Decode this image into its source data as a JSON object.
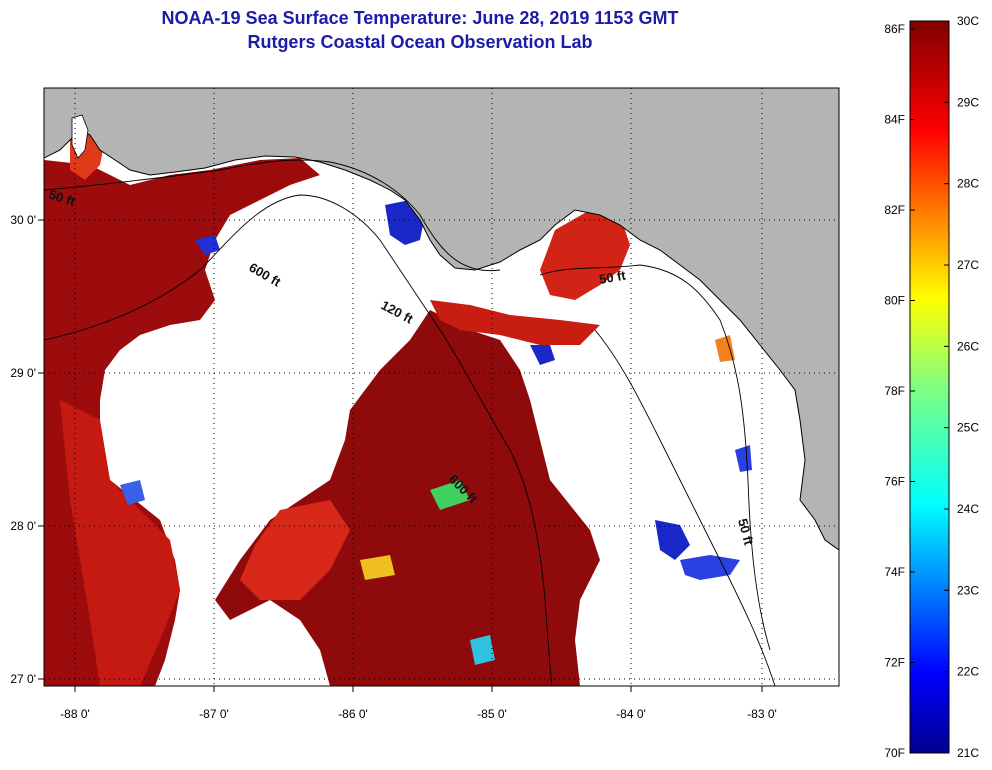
{
  "title": "NOAA-19 Sea Surface Temperature:  June 28, 2019 1153 GMT",
  "subtitle": "Rutgers Coastal Ocean Observation Lab",
  "map": {
    "lon_range": [
      -88.3,
      -82.5
    ],
    "lat_range": [
      26.95,
      30.85
    ],
    "lon_ticks": [
      "-88 0'",
      "-87 0'",
      "-86 0'",
      "-85 0'",
      "-84 0'",
      "-83 0'"
    ],
    "lon_values": [
      -88,
      -87,
      -86,
      -85,
      -84,
      -83
    ],
    "lat_ticks": [
      "30 0'",
      "29 0'",
      "28 0'",
      "27 0'"
    ],
    "lat_values": [
      30,
      29,
      28,
      27
    ],
    "land_color": "#b4b4b4",
    "warm_water_color": "#a80e0e",
    "contour_labels": [
      "50 ft",
      "600 ft",
      "120 ft",
      "50 ft",
      "600 ft",
      "50 ft"
    ]
  },
  "colorbar": {
    "fahrenheit_labels": [
      "86F",
      "84F",
      "82F",
      "80F",
      "78F",
      "76F",
      "74F",
      "72F",
      "70F"
    ],
    "celsius_labels": [
      "30C",
      "29C",
      "28C",
      "27C",
      "26C",
      "25C",
      "24C",
      "23C",
      "22C",
      "21C"
    ],
    "colormap": "jet",
    "min_c": 21,
    "max_c": 30
  }
}
